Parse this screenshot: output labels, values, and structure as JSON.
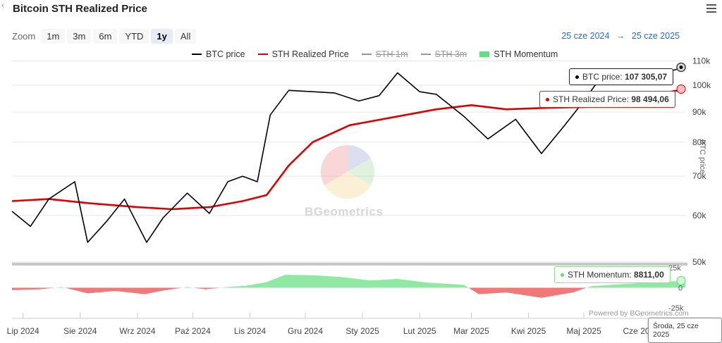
{
  "header": {
    "title": "Bitcoin STH Realized Price",
    "back_glyph": "‹",
    "menu_icon": "hamburger-menu-icon"
  },
  "zoom": {
    "label": "Zoom",
    "buttons": [
      "1m",
      "3m",
      "6m",
      "YTD",
      "1y",
      "All"
    ],
    "active": "1y"
  },
  "range": {
    "from": "25 cze 2024",
    "arrow": "→",
    "to": "25 cze 2025"
  },
  "legend": [
    {
      "label": "BTC price",
      "color": "#000000",
      "enabled": true,
      "kind": "line"
    },
    {
      "label": "STH Realized Price",
      "color": "#e00000",
      "enabled": true,
      "kind": "line"
    },
    {
      "label": "STH 1m",
      "color": "#888888",
      "enabled": false,
      "kind": "line"
    },
    {
      "label": "STH 3m",
      "color": "#888888",
      "enabled": false,
      "kind": "line"
    },
    {
      "label": "STH Momentum",
      "color": "#5fe07a",
      "enabled": true,
      "kind": "area"
    }
  ],
  "watermark": "BGeometrics",
  "credits": "Powered by BGeometrics.com",
  "tooltips": {
    "btc_label": "BTC price: ",
    "btc_value": "107 305,07",
    "sth_label": "STH Realized Price: ",
    "sth_value": "98 494,06",
    "mom_label": "STH Momentum: ",
    "mom_value": "8811,00",
    "date": "Środa, 25 cze 2025"
  },
  "chart_data": {
    "type": "line",
    "x_axis": {
      "labels": [
        "Lip 2024",
        "Sie 2024",
        "Wrz 2024",
        "Paź 2024",
        "Lis 2024",
        "Gru 2024",
        "Sty 2025",
        "Lut 2025",
        "Mar 2025",
        "Kwi 2025",
        "Maj 2025",
        "Cze 2025"
      ],
      "range": [
        "2024-06-25",
        "2025-06-25"
      ]
    },
    "y_axis_price": {
      "title": "BTC price",
      "scale": "log",
      "ticks": [
        50000,
        60000,
        70000,
        80000,
        90000,
        100000,
        110000
      ],
      "tick_labels": [
        "50k",
        "60k",
        "70k",
        "80k",
        "90k",
        "100k",
        "110k"
      ],
      "range": [
        50000,
        112000
      ]
    },
    "y_axis_momentum": {
      "ticks": [
        25000,
        0,
        -25000
      ],
      "tick_labels": [
        "25k",
        "0",
        "-25k"
      ],
      "range": [
        -25000,
        25000
      ]
    },
    "series": [
      {
        "name": "BTC price",
        "color": "#000000",
        "x": [
          "2024-06-25",
          "2024-07-05",
          "2024-07-15",
          "2024-07-29",
          "2024-08-05",
          "2024-08-15",
          "2024-08-25",
          "2024-09-06",
          "2024-09-15",
          "2024-09-28",
          "2024-10-10",
          "2024-10-20",
          "2024-10-28",
          "2024-11-05",
          "2024-11-12",
          "2024-11-22",
          "2024-12-05",
          "2024-12-17",
          "2024-12-30",
          "2025-01-10",
          "2025-01-20",
          "2025-02-01",
          "2025-02-10",
          "2025-02-25",
          "2025-03-10",
          "2025-03-25",
          "2025-04-08",
          "2025-04-20",
          "2025-05-01",
          "2025-05-10",
          "2025-05-20",
          "2025-06-01",
          "2025-06-10",
          "2025-06-25"
        ],
        "values": [
          61000,
          57500,
          64000,
          68500,
          54000,
          58500,
          64000,
          54000,
          59500,
          65500,
          60500,
          68500,
          70000,
          68500,
          89000,
          98000,
          97500,
          97000,
          94000,
          96000,
          105000,
          97500,
          96500,
          88500,
          81000,
          87500,
          76500,
          85000,
          94000,
          103000,
          106000,
          105000,
          104500,
          107305.07
        ]
      },
      {
        "name": "STH Realized Price",
        "color": "#e00000",
        "x": [
          "2024-06-25",
          "2024-07-15",
          "2024-08-05",
          "2024-09-01",
          "2024-09-20",
          "2024-10-10",
          "2024-10-28",
          "2024-11-10",
          "2024-11-22",
          "2024-12-05",
          "2024-12-25",
          "2025-01-20",
          "2025-02-10",
          "2025-03-01",
          "2025-03-20",
          "2025-04-10",
          "2025-05-01",
          "2025-05-20",
          "2025-06-05",
          "2025-06-25"
        ],
        "values": [
          63500,
          64000,
          63000,
          62000,
          61500,
          62000,
          63500,
          65000,
          73000,
          80000,
          85500,
          88500,
          91000,
          92500,
          91000,
          91500,
          91800,
          93000,
          96000,
          98494.06
        ]
      },
      {
        "name": "STH Momentum",
        "color": "#5fe07a",
        "negative_color": "#f06060",
        "x": [
          "2024-06-25",
          "2024-07-10",
          "2024-07-22",
          "2024-08-05",
          "2024-08-20",
          "2024-09-05",
          "2024-09-15",
          "2024-09-28",
          "2024-10-08",
          "2024-10-20",
          "2024-10-30",
          "2024-11-10",
          "2024-11-20",
          "2024-12-05",
          "2024-12-20",
          "2025-01-05",
          "2025-01-20",
          "2025-02-05",
          "2025-02-25",
          "2025-03-05",
          "2025-03-20",
          "2025-04-08",
          "2025-04-25",
          "2025-05-05",
          "2025-06-01",
          "2025-06-25"
        ],
        "values": [
          -3000,
          -2000,
          1000,
          -7000,
          -4000,
          -8000,
          -3500,
          1000,
          -2000,
          1000,
          2500,
          7000,
          16000,
          15500,
          13500,
          9000,
          11000,
          6500,
          3500,
          -8000,
          -6000,
          -12500,
          -6000,
          2000,
          6000,
          8811
        ]
      }
    ]
  }
}
